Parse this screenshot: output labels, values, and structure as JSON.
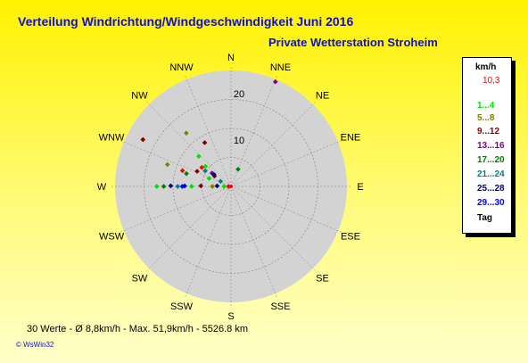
{
  "title": "Verteilung Windrichtung/Windgeschwindigkeit  Juni 2016",
  "subtitle": "Private Wetterstation Stroheim",
  "footer": "30 Werte    -   Ø 8,8km/h   -   Max. 51,9km/h   -    5526.8 km",
  "brand": "© WsWin32",
  "colors": {
    "background": "#fff200",
    "title": "#1010c8",
    "disk": "#d3d3d3",
    "grid": "#808080"
  },
  "legend": {
    "unit": "km/h",
    "max": "10,3",
    "max_color": "#ff0000",
    "classes": [
      {
        "label": "1...4",
        "color": "#00e000"
      },
      {
        "label": "5...8",
        "color": "#808000"
      },
      {
        "label": "9...12",
        "color": "#800000"
      },
      {
        "label": "13...16",
        "color": "#800080"
      },
      {
        "label": "17...20",
        "color": "#008000"
      },
      {
        "label": "21...24",
        "color": "#008080"
      },
      {
        "label": "25...28",
        "color": "#000080"
      },
      {
        "label": "29...30",
        "color": "#0000ff"
      }
    ],
    "tag": "Tag"
  },
  "chart_data": {
    "type": "scatter",
    "coordinate_system": "polar",
    "radial_ticks": [
      10,
      20
    ],
    "rmax": 25,
    "directions": [
      "N",
      "NNE",
      "NE",
      "ENE",
      "E",
      "ESE",
      "SE",
      "SSE",
      "S",
      "SSW",
      "SW",
      "WSW",
      "W",
      "WNW",
      "NW",
      "NNW"
    ],
    "points": [
      {
        "dir": 22.5,
        "r": 4.0,
        "color": "#008000"
      },
      {
        "dir": 23.0,
        "r": 24.5,
        "color": "#800080"
      },
      {
        "dir": 268.0,
        "r": 0.5,
        "color": "#ff0000"
      },
      {
        "dir": 270.0,
        "r": 1.5,
        "color": "#00e000"
      },
      {
        "dir": 272.0,
        "r": 3.0,
        "color": "#000080"
      },
      {
        "dir": 270.0,
        "r": 4.0,
        "color": "#808000"
      },
      {
        "dir": 271.0,
        "r": 6.5,
        "color": "#800000"
      },
      {
        "dir": 270.0,
        "r": 8.5,
        "color": "#00e000"
      },
      {
        "dir": 270.5,
        "r": 10.0,
        "color": "#000080"
      },
      {
        "dir": 270.0,
        "r": 10.5,
        "color": "#0000ff"
      },
      {
        "dir": 270.0,
        "r": 11.5,
        "color": "#008080"
      },
      {
        "dir": 270.5,
        "r": 13.0,
        "color": "#000080"
      },
      {
        "dir": 270.0,
        "r": 14.5,
        "color": "#008000"
      },
      {
        "dir": 270.0,
        "r": 16.0,
        "color": "#00e000"
      },
      {
        "dir": 290.0,
        "r": 5.0,
        "color": "#00e000"
      },
      {
        "dir": 296.0,
        "r": 2.5,
        "color": "#008080"
      },
      {
        "dir": 302.0,
        "r": 4.2,
        "color": "#800000"
      },
      {
        "dir": 305.0,
        "r": 5.0,
        "color": "#800080"
      },
      {
        "dir": 301.0,
        "r": 6.5,
        "color": "#008080"
      },
      {
        "dir": 294.0,
        "r": 8.0,
        "color": "#800000"
      },
      {
        "dir": 303.0,
        "r": 7.5,
        "color": "#ff0000"
      },
      {
        "dir": 308.0,
        "r": 7.0,
        "color": "#00e000"
      },
      {
        "dir": 286.0,
        "r": 10.0,
        "color": "#008000"
      },
      {
        "dir": 288.0,
        "r": 11.0,
        "color": "#ff0000"
      },
      {
        "dir": 289.0,
        "r": 14.5,
        "color": "#808000"
      },
      {
        "dir": 298.0,
        "r": 21.5,
        "color": "#800000"
      },
      {
        "dir": 305.0,
        "r": 4.5,
        "color": "#000080"
      },
      {
        "dir": 313.0,
        "r": 9.5,
        "color": "#00e000"
      },
      {
        "dir": 320.0,
        "r": 15.0,
        "color": "#808000"
      },
      {
        "dir": 329.0,
        "r": 11.0,
        "color": "#800000"
      }
    ]
  }
}
